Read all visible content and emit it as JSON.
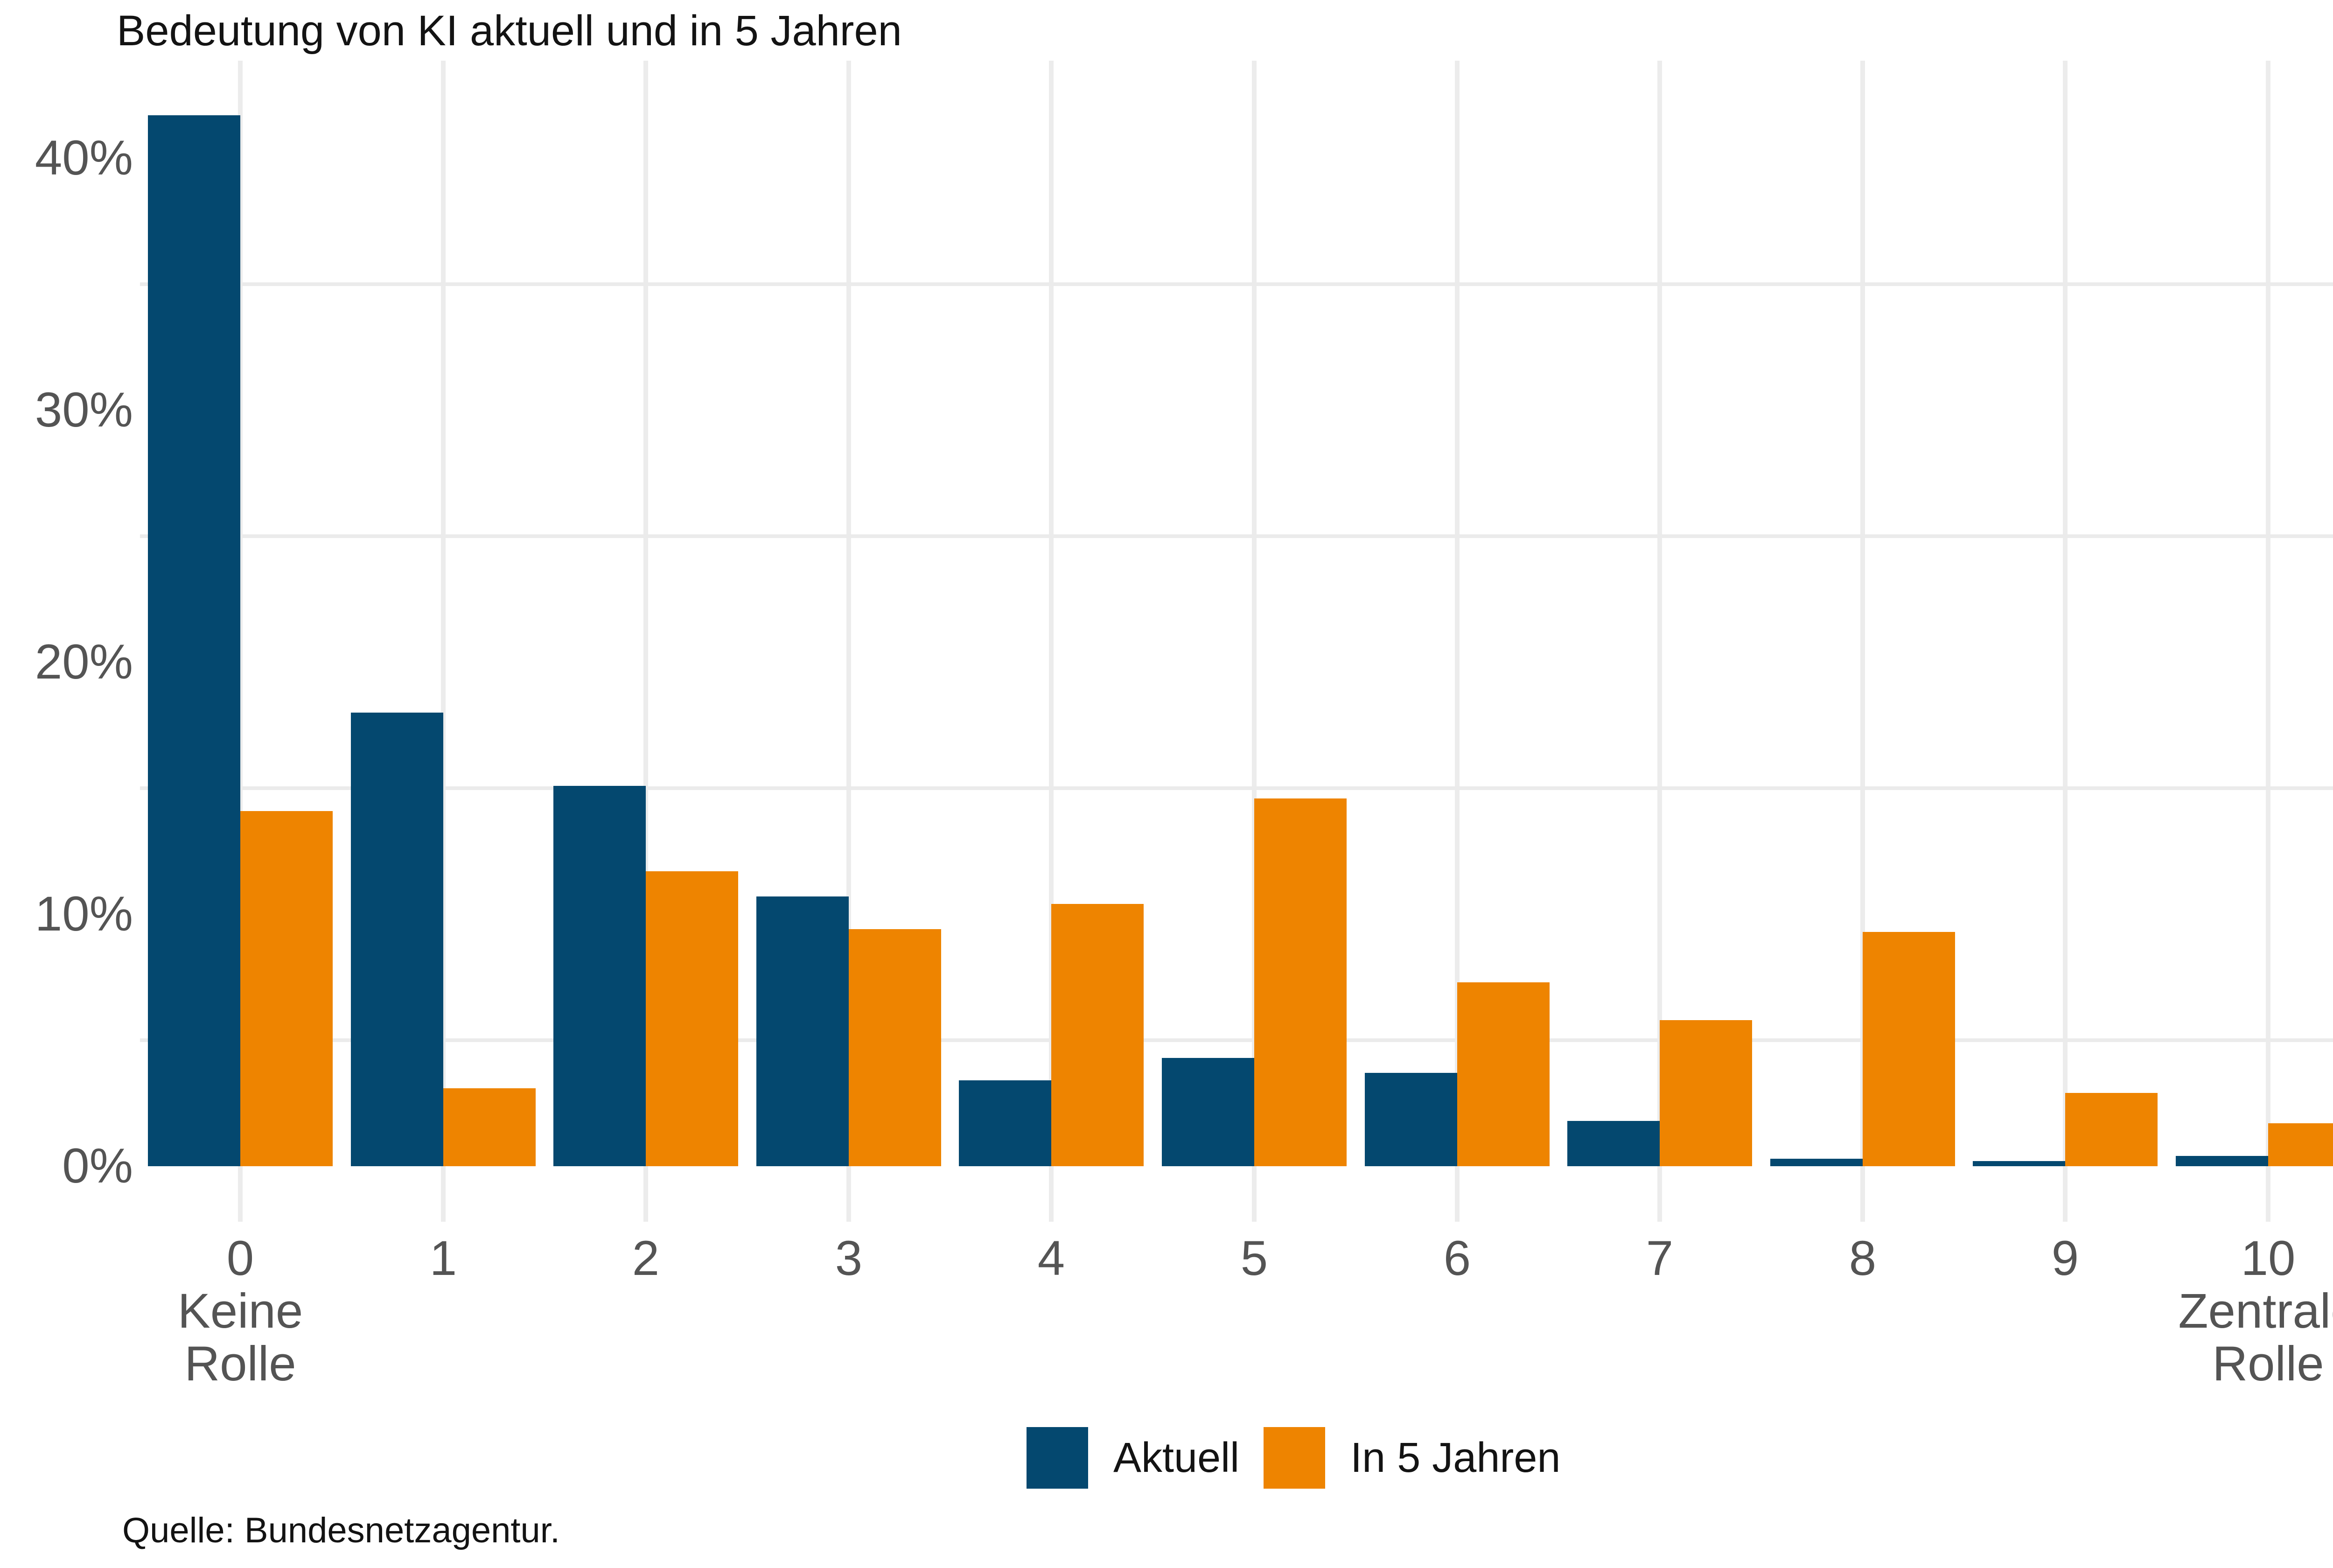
{
  "title": "Bedeutung von KI aktuell und in 5 Jahren",
  "source_note": "Quelle: Bundesnetzagentur.",
  "colors": {
    "aktuell": "#04486F",
    "in_5_jahren": "#EE8400",
    "grid": "#ECECEC",
    "tick_text": "#545454",
    "text": "#131313"
  },
  "legend": {
    "position": "bottom",
    "items": [
      {
        "label": "Aktuell",
        "color": "#04486F"
      },
      {
        "label": "In 5 Jahren",
        "color": "#EE8400"
      }
    ]
  },
  "y_axis": {
    "tick_labels": [
      "40%",
      "30%",
      "20%",
      "10%",
      "0%"
    ],
    "tick_values": [
      40,
      30,
      20,
      10,
      0
    ],
    "minor_gridline_values": [
      35,
      25,
      15,
      5
    ]
  },
  "x_axis": {
    "tick_label_lines": [
      [
        "0",
        "Keine",
        "Rolle"
      ],
      [
        "1"
      ],
      [
        "2"
      ],
      [
        "3"
      ],
      [
        "4"
      ],
      [
        "5"
      ],
      [
        "6"
      ],
      [
        "7"
      ],
      [
        "8"
      ],
      [
        "9"
      ],
      [
        "10",
        "Zentrale",
        "Rolle"
      ]
    ]
  },
  "chart_data": {
    "type": "bar",
    "title": "Bedeutung von KI aktuell und in 5 Jahren",
    "categories": [
      "0",
      "1",
      "2",
      "3",
      "4",
      "5",
      "6",
      "7",
      "8",
      "9",
      "10"
    ],
    "series": [
      {
        "name": "Aktuell",
        "values": [
          41.7,
          18.0,
          15.1,
          10.7,
          3.4,
          4.3,
          3.7,
          1.8,
          0.3,
          0.2,
          0.4
        ]
      },
      {
        "name": "In 5 Jahren",
        "values": [
          14.1,
          3.1,
          11.7,
          9.4,
          10.4,
          14.6,
          7.3,
          5.8,
          9.3,
          2.9,
          1.7
        ]
      }
    ],
    "xlabel": "",
    "ylabel": "",
    "ylim": [
      0,
      43.8
    ],
    "value_unit": "%",
    "grid": "horizontal-minor",
    "legend_position": "bottom"
  }
}
